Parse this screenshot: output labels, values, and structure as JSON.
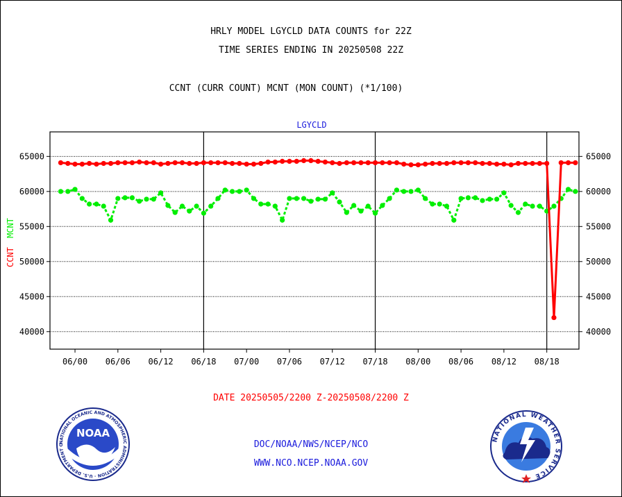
{
  "titles": {
    "line1": "HRLY MODEL LGYCLD DATA COUNTS for 22Z",
    "line2": "TIME SERIES ENDING IN 20250508 22Z",
    "line3": "CCNT (CURR COUNT) MCNT (MON COUNT) (*1/100)"
  },
  "footer": {
    "date_range": "DATE 20250505/2200 Z-20250508/2200 Z",
    "link1": "DOC/NOAA/NWS/NCEP/NCO",
    "link2": "WWW.NCO.NCEP.NOAA.GOV"
  },
  "logos": {
    "left_text": "NOAA",
    "left_ring": "NATIONAL OCEANIC AND ATMOSPHERIC ADMINISTRATION · U.S. DEPARTMENT OF COMMERCE",
    "right_ring": "NATIONAL WEATHER SERVICE"
  },
  "chart_data": {
    "type": "line",
    "title": "LGYCLD",
    "ylabel_left": [
      "CCNT",
      "MCNT"
    ],
    "ylim": [
      37500,
      68500
    ],
    "yticks": [
      40000,
      45000,
      50000,
      55000,
      60000,
      65000
    ],
    "ytick_labels": [
      "40000",
      "45000",
      "50000",
      "55000",
      "60000",
      "65000"
    ],
    "xlim": [
      -3.5,
      70.5
    ],
    "xticks": [
      0,
      6,
      12,
      18,
      24,
      30,
      36,
      42,
      48,
      54,
      60,
      66
    ],
    "xtick_labels": [
      "06/00",
      "06/06",
      "06/12",
      "06/18",
      "07/00",
      "07/06",
      "07/12",
      "07/18",
      "08/00",
      "08/06",
      "08/12",
      "08/18"
    ],
    "day_boundaries": [
      18,
      42,
      66
    ],
    "grid": true,
    "series": [
      {
        "name": "CCNT",
        "color": "#ff0000",
        "x": [
          -2,
          -1,
          0,
          1,
          2,
          3,
          4,
          5,
          6,
          7,
          8,
          9,
          10,
          11,
          12,
          13,
          14,
          15,
          16,
          17,
          18,
          19,
          20,
          21,
          22,
          23,
          24,
          25,
          26,
          27,
          28,
          29,
          30,
          31,
          32,
          33,
          34,
          35,
          36,
          37,
          38,
          39,
          40,
          41,
          42,
          43,
          44,
          45,
          46,
          47,
          48,
          49,
          50,
          51,
          52,
          53,
          54,
          55,
          56,
          57,
          58,
          59,
          60,
          61,
          62,
          63,
          64,
          65,
          66,
          67,
          68,
          69,
          70
        ],
        "values": [
          64100,
          64000,
          63900,
          63900,
          64000,
          63900,
          64000,
          64000,
          64100,
          64100,
          64100,
          64200,
          64100,
          64100,
          63900,
          64000,
          64100,
          64100,
          64000,
          64000,
          64100,
          64100,
          64100,
          64100,
          64000,
          64000,
          63900,
          63900,
          64000,
          64200,
          64200,
          64300,
          64300,
          64300,
          64400,
          64400,
          64300,
          64200,
          64100,
          64000,
          64100,
          64100,
          64100,
          64100,
          64100,
          64100,
          64100,
          64100,
          63900,
          63800,
          63800,
          63900,
          64000,
          64000,
          64000,
          64100,
          64100,
          64100,
          64100,
          64000,
          64000,
          63900,
          63900,
          63800,
          64000,
          64000,
          64000,
          64000,
          64000,
          42000,
          64100,
          64100,
          64100
        ]
      },
      {
        "name": "MCNT",
        "color": "#00ee00",
        "x": [
          -2,
          -1,
          0,
          1,
          2,
          3,
          4,
          5,
          6,
          7,
          8,
          9,
          10,
          11,
          12,
          13,
          14,
          15,
          16,
          17,
          18,
          19,
          20,
          21,
          22,
          23,
          24,
          25,
          26,
          27,
          28,
          29,
          30,
          31,
          32,
          33,
          34,
          35,
          36,
          37,
          38,
          39,
          40,
          41,
          42,
          43,
          44,
          45,
          46,
          47,
          48,
          49,
          50,
          51,
          52,
          53,
          54,
          55,
          56,
          57,
          58,
          59,
          60,
          61,
          62,
          63,
          64,
          65,
          66,
          67,
          68,
          69,
          70
        ],
        "values": [
          60000,
          60000,
          60300,
          59000,
          58200,
          58200,
          57900,
          55900,
          59000,
          59100,
          59100,
          58600,
          58900,
          58900,
          59800,
          58000,
          57000,
          57900,
          57200,
          57900,
          56900,
          57900,
          59000,
          60200,
          60000,
          60000,
          60200,
          59000,
          58200,
          58200,
          57900,
          55900,
          59000,
          59000,
          59000,
          58600,
          58900,
          58900,
          59800,
          58500,
          57000,
          58000,
          57200,
          57900,
          56900,
          58000,
          59000,
          60200,
          60000,
          60000,
          60200,
          59000,
          58200,
          58200,
          57900,
          55900,
          59000,
          59100,
          59100,
          58700,
          58900,
          58900,
          59800,
          58000,
          57000,
          58200,
          57900,
          57900,
          57200,
          57900,
          59000,
          60300,
          60000
        ]
      }
    ]
  }
}
